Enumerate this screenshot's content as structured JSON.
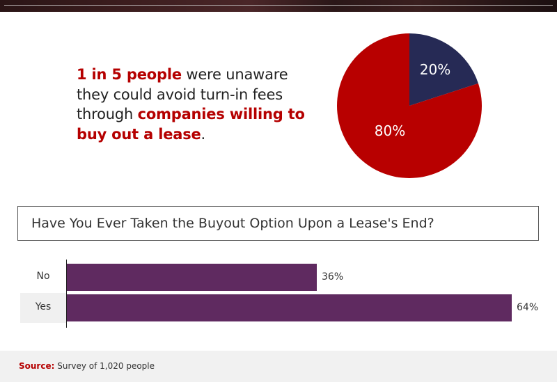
{
  "headline": {
    "part1_highlight": "1 in 5 people",
    "part2": " were unaware they could avoid turn-in fees through ",
    "part3_highlight": "companies willing to buy out a lease",
    "part4": "."
  },
  "question": "Have You Ever Taken the Buyout Option Upon a Lease's End?",
  "footer": {
    "source_label": "Source:",
    "source_text": " Survey of 1,020 people"
  },
  "colors": {
    "accent_red": "#b50000",
    "pie_red": "#b80000",
    "pie_navy": "#262a55",
    "bar_purple": "#5f2a60"
  },
  "chart_data": [
    {
      "type": "pie",
      "title": "",
      "slices": [
        {
          "label": "20%",
          "value": 20,
          "color": "#262a55"
        },
        {
          "label": "80%",
          "value": 80,
          "color": "#b80000"
        }
      ],
      "legend": "none"
    },
    {
      "type": "bar",
      "orientation": "horizontal",
      "title": "Have You Ever Taken the Buyout Option Upon a Lease's End?",
      "categories": [
        "No",
        "Yes"
      ],
      "values": [
        36,
        64
      ],
      "value_labels": [
        "36%",
        "64%"
      ],
      "xlabel": "",
      "ylabel": "",
      "xlim": [
        0,
        64
      ],
      "grid": false,
      "color": "#5f2a60"
    }
  ]
}
